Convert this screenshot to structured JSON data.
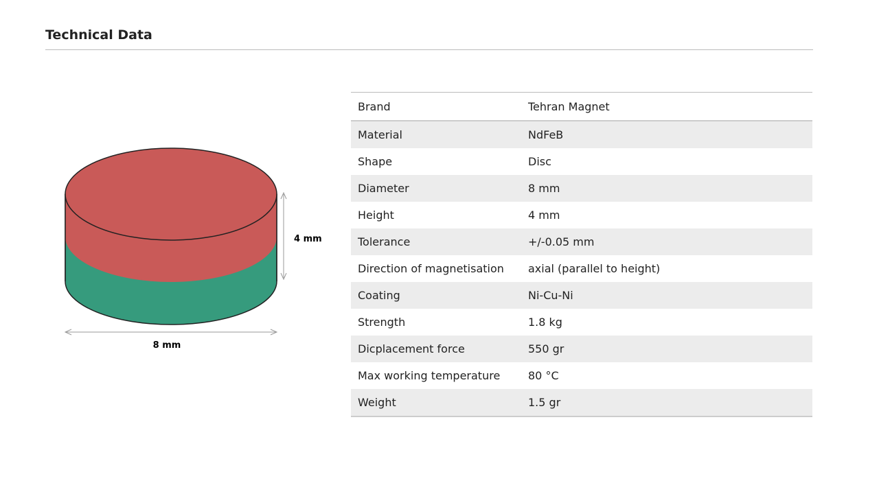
{
  "header": {
    "title": "Technical Data"
  },
  "figure": {
    "height_label": "4 mm",
    "diameter_label": "8 mm"
  },
  "table": {
    "rows": [
      [
        "Brand",
        "Tehran Magnet"
      ],
      [
        "Material",
        "NdFeB"
      ],
      [
        "Shape",
        "Disc"
      ],
      [
        "Diameter",
        "8 mm"
      ],
      [
        "Height",
        "4 mm"
      ],
      [
        "Tolerance",
        "+/-0.05 mm"
      ],
      [
        "Direction of magnetisation",
        "axial (parallel to height)"
      ],
      [
        "Coating",
        "Ni-Cu-Ni"
      ],
      [
        "Strength",
        "1.8 kg"
      ],
      [
        "Dicplacement force",
        "550 gr"
      ],
      [
        "Max working temperature",
        "80 °C"
      ],
      [
        "Weight",
        "1.5 gr"
      ]
    ]
  }
}
